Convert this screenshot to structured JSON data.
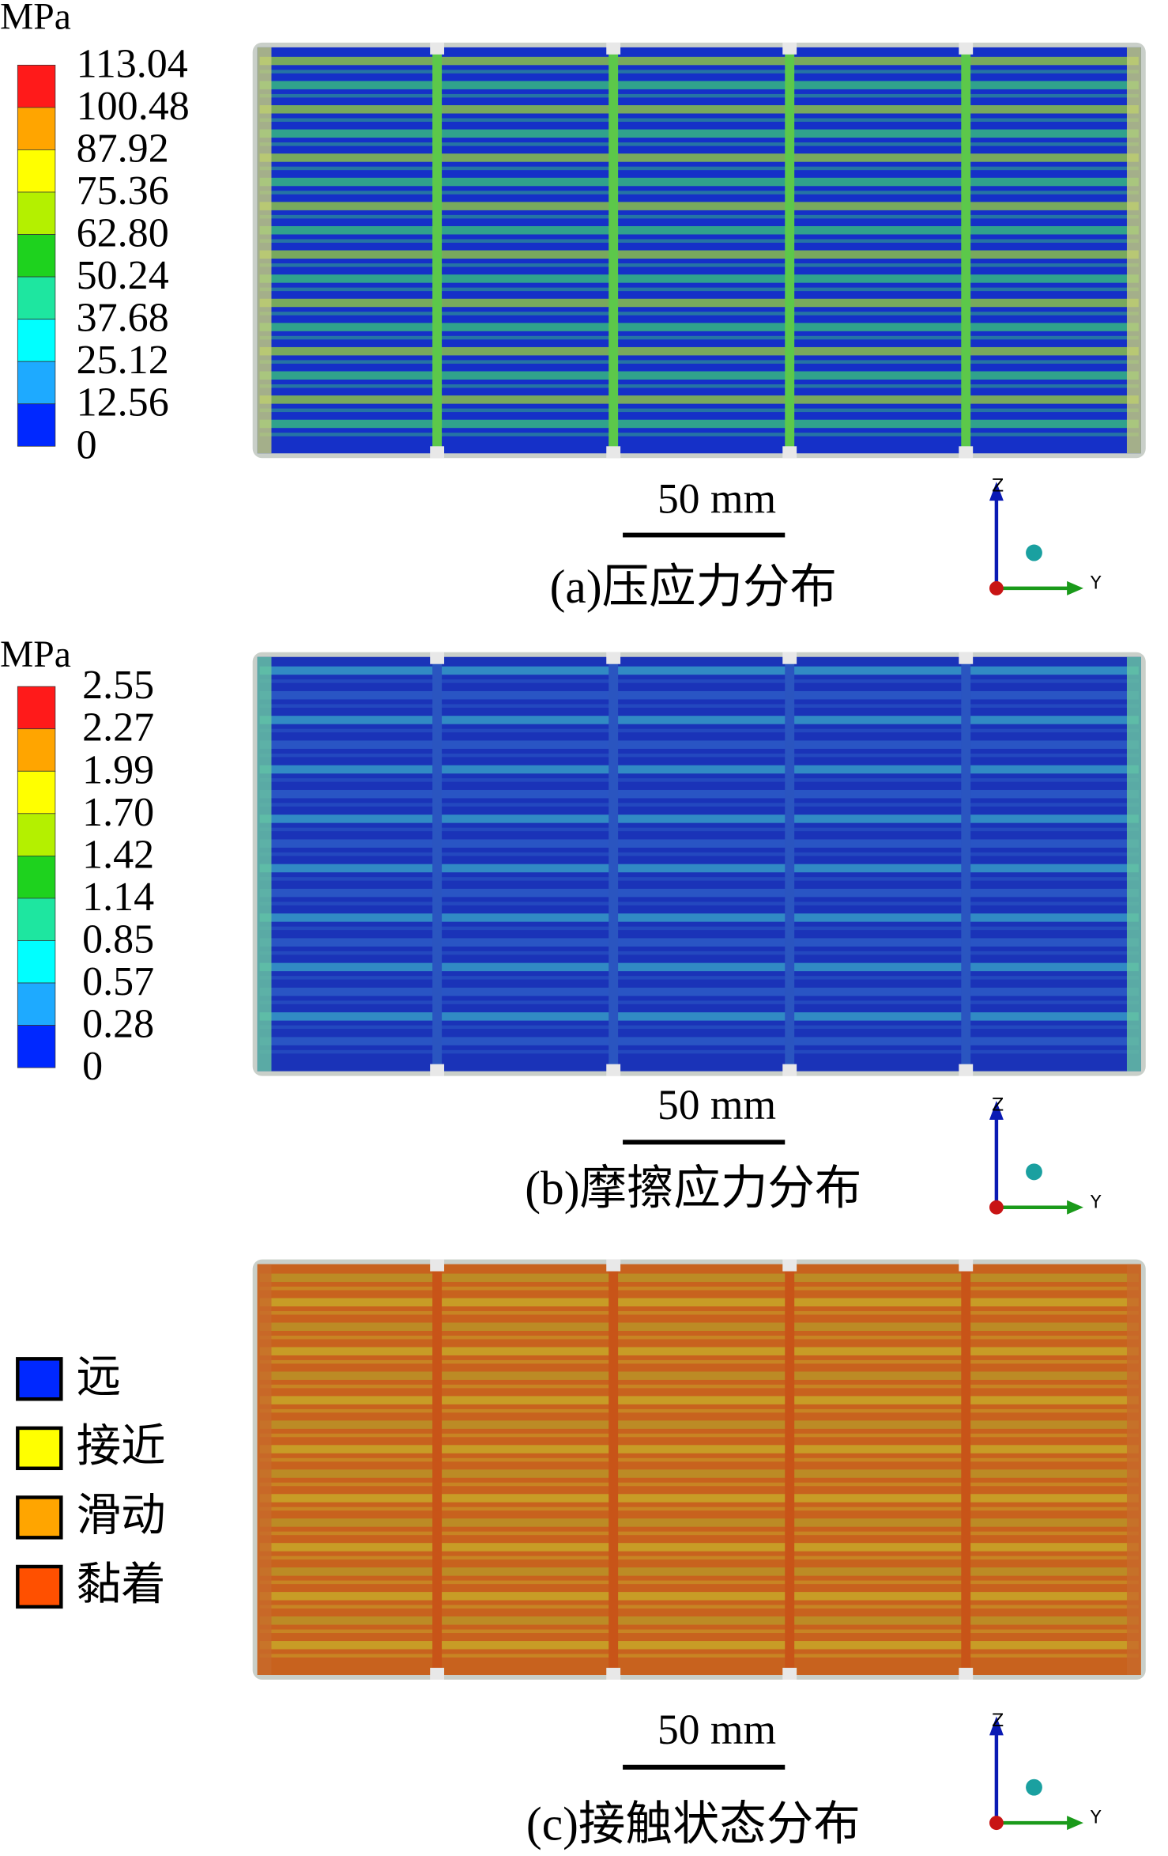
{
  "panels": [
    {
      "legend": {
        "unit": "MPa",
        "levels": [
          "113.04",
          "100.48",
          "87.92",
          "75.36",
          "62.80",
          "50.24",
          "37.68",
          "25.12",
          "12.56",
          "0"
        ],
        "colors": [
          "#ff1a1a",
          "#ffa500",
          "#ffff00",
          "#b4f000",
          "#1ed21e",
          "#1ee6a0",
          "#00ffff",
          "#1eaaff",
          "#0028ff"
        ]
      },
      "scale_bar": "50 mm",
      "axes": {
        "z": "Z",
        "y": "Y"
      },
      "caption": "(a)压应力分布"
    },
    {
      "legend": {
        "unit": "MPa",
        "levels": [
          "2.55",
          "2.27",
          "1.99",
          "1.70",
          "1.42",
          "1.14",
          "0.85",
          "0.57",
          "0.28",
          "0"
        ],
        "colors": [
          "#ff1a1a",
          "#ffa500",
          "#ffff00",
          "#b4f000",
          "#1ed21e",
          "#1ee6a0",
          "#00ffff",
          "#1eaaff",
          "#0028ff"
        ]
      },
      "scale_bar": "50 mm",
      "axes": {
        "z": "Z",
        "y": "Y"
      },
      "caption": "(b)摩擦应力分布"
    },
    {
      "legend": {
        "items": [
          {
            "label": "远",
            "color": "#0028ff"
          },
          {
            "label": "接近",
            "color": "#ffff00"
          },
          {
            "label": "滑动",
            "color": "#ffa500"
          },
          {
            "label": "黏着",
            "color": "#ff5000"
          }
        ]
      },
      "scale_bar": "50 mm",
      "axes": {
        "z": "Z",
        "y": "Y"
      },
      "caption": "(c)接触状态分布"
    }
  ]
}
